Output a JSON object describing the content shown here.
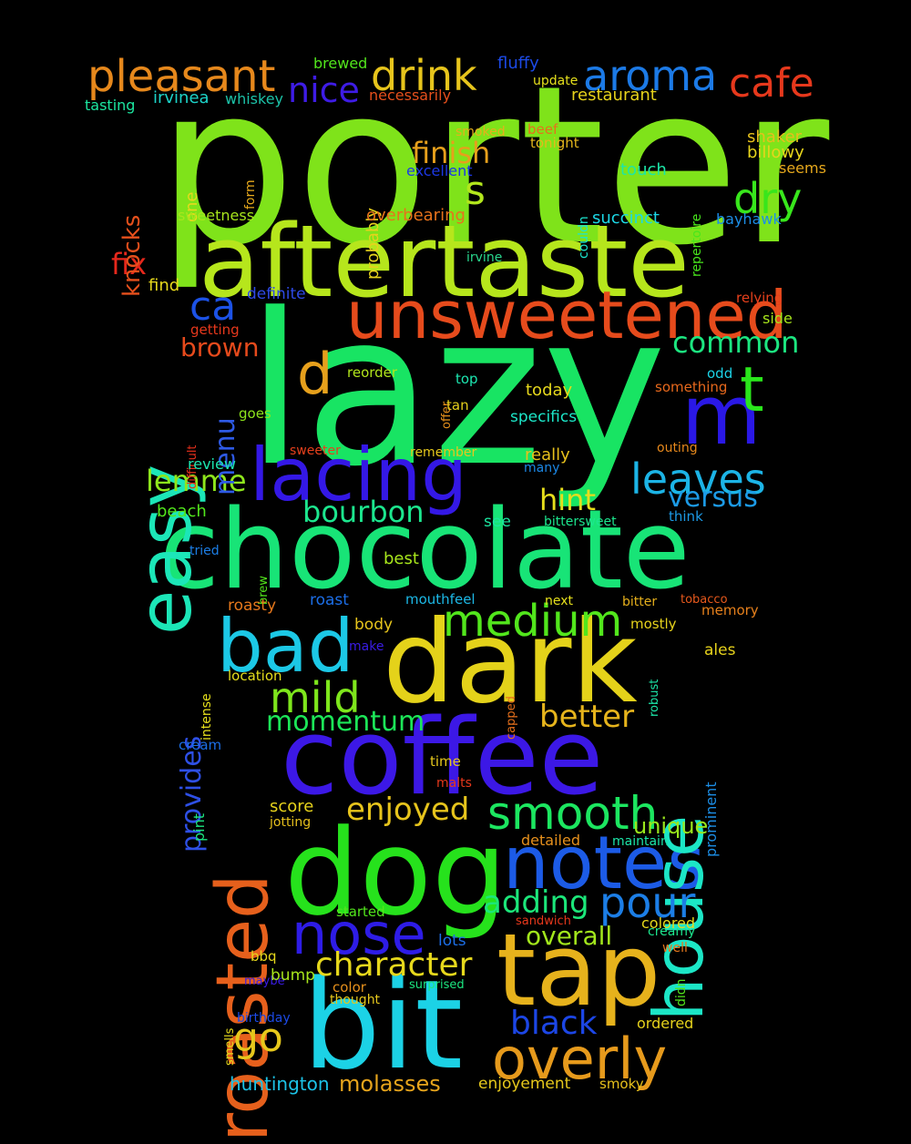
{
  "background": "#000000",
  "words": [
    {
      "text": "porter",
      "color": "#7fe31a"
    },
    {
      "text": "lazy",
      "color": "#18e463"
    },
    {
      "text": "aftertaste",
      "color": "#b6e61c"
    },
    {
      "text": "chocolate",
      "color": "#18e477"
    },
    {
      "text": "dark",
      "color": "#e4d21a"
    },
    {
      "text": "coffee",
      "color": "#3c18e6"
    },
    {
      "text": "dog",
      "color": "#26e21c"
    },
    {
      "text": "bit",
      "color": "#1cd2e6"
    },
    {
      "text": "tap",
      "color": "#e6b21c"
    },
    {
      "text": "unsweetened",
      "color": "#e64b1c"
    },
    {
      "text": "lacing",
      "color": "#3418e6"
    },
    {
      "text": "notes",
      "color": "#1c5be6"
    },
    {
      "text": "m",
      "color": "#2a18e6"
    },
    {
      "text": "roasted",
      "color": "#e6601c"
    },
    {
      "text": "house",
      "color": "#1ce6c6"
    },
    {
      "text": "easy",
      "color": "#1ce6b8"
    },
    {
      "text": "bad",
      "color": "#1cc8e6"
    },
    {
      "text": "overly",
      "color": "#e69a1c"
    },
    {
      "text": "nose",
      "color": "#2e1ce6"
    },
    {
      "text": "smooth",
      "color": "#1ce660"
    },
    {
      "text": "medium",
      "color": "#52e61c"
    },
    {
      "text": "pleasant",
      "color": "#e6881c"
    },
    {
      "text": "aroma",
      "color": "#1c7ae6"
    },
    {
      "text": "drink",
      "color": "#e6c41c"
    },
    {
      "text": "cafe",
      "color": "#e6381c"
    },
    {
      "text": "d",
      "color": "#e6a01c"
    },
    {
      "text": "t",
      "color": "#2ae61c"
    },
    {
      "text": "dry",
      "color": "#38e61c"
    },
    {
      "text": "leaves",
      "color": "#1cb4e6"
    },
    {
      "text": "pour",
      "color": "#1c7ee6"
    },
    {
      "text": "mild",
      "color": "#7ee61c"
    },
    {
      "text": "ca",
      "color": "#1c52e6"
    },
    {
      "text": "nice",
      "color": "#3e1ce6"
    },
    {
      "text": "s",
      "color": "#b2e61c"
    },
    {
      "text": "finish",
      "color": "#e6a01c"
    },
    {
      "text": "go",
      "color": "#e6c81c"
    },
    {
      "text": "character",
      "color": "#e6d81c"
    },
    {
      "text": "enjoyed",
      "color": "#e6c41c"
    },
    {
      "text": "adding",
      "color": "#1ce67a"
    },
    {
      "text": "black",
      "color": "#1c46e6"
    },
    {
      "text": "better",
      "color": "#e6b41c"
    },
    {
      "text": "common",
      "color": "#1ce680"
    },
    {
      "text": "bourbon",
      "color": "#1ce68e"
    },
    {
      "text": "hint",
      "color": "#e6de1c"
    },
    {
      "text": "lemme",
      "color": "#8ee61c"
    },
    {
      "text": "momentum",
      "color": "#1ce658"
    },
    {
      "text": "versus",
      "color": "#1c9ae6"
    },
    {
      "text": "menu",
      "color": "#2e5ae6"
    },
    {
      "text": "brown",
      "color": "#e64a1c"
    },
    {
      "text": "fix",
      "color": "#e6281c"
    },
    {
      "text": "provides",
      "color": "#2e50e6"
    },
    {
      "text": "knocks",
      "color": "#e6501c"
    },
    {
      "text": "overall",
      "color": "#a2e61c"
    },
    {
      "text": "molasses",
      "color": "#e6a41c"
    },
    {
      "text": "unique",
      "color": "#9ae61c"
    },
    {
      "text": "huntington",
      "color": "#1cc2e6"
    },
    {
      "text": "enjoyement",
      "color": "#e6c81c"
    },
    {
      "text": "restaurant",
      "color": "#e6d21c"
    },
    {
      "text": "fluffy",
      "color": "#1c4ae6"
    },
    {
      "text": "brewed",
      "color": "#52e61c"
    },
    {
      "text": "irvinea",
      "color": "#1cd2c8"
    },
    {
      "text": "whiskey",
      "color": "#1cc2a8"
    },
    {
      "text": "tasting",
      "color": "#1ce6a0"
    },
    {
      "text": "necessarily",
      "color": "#e6501c"
    },
    {
      "text": "update",
      "color": "#e6e01c"
    },
    {
      "text": "smoked",
      "color": "#e6b01c"
    },
    {
      "text": "beef",
      "color": "#e6701c"
    },
    {
      "text": "tonight",
      "color": "#e6b81c"
    },
    {
      "text": "excellent",
      "color": "#1c38e6"
    },
    {
      "text": "shaker",
      "color": "#e6c01c"
    },
    {
      "text": "billowy",
      "color": "#e6d41c"
    },
    {
      "text": "seems",
      "color": "#e6a81c"
    },
    {
      "text": "touch",
      "color": "#1ce6a8"
    },
    {
      "text": "succinct",
      "color": "#1cd8e6"
    },
    {
      "text": "bayhawk",
      "color": "#1c8ee6"
    },
    {
      "text": "repertoire",
      "color": "#48e61c"
    },
    {
      "text": "couldn",
      "color": "#1ce6d0"
    },
    {
      "text": "probably",
      "color": "#e6d21c"
    },
    {
      "text": "overbearing",
      "color": "#e6721c"
    },
    {
      "text": "one",
      "color": "#e6da1c"
    },
    {
      "text": "form",
      "color": "#e6a81c"
    },
    {
      "text": "sweetness",
      "color": "#a8e61c"
    },
    {
      "text": "irvine",
      "color": "#2ad88e"
    },
    {
      "text": "find",
      "color": "#e6d81c"
    },
    {
      "text": "definite",
      "color": "#2e4ae6"
    },
    {
      "text": "relying",
      "color": "#e6401c"
    },
    {
      "text": "side",
      "color": "#a8e61c"
    },
    {
      "text": "getting",
      "color": "#e6381c"
    },
    {
      "text": "reorder",
      "color": "#b2e61c"
    },
    {
      "text": "top",
      "color": "#1ce6b0"
    },
    {
      "text": "offer",
      "color": "#e6901c"
    },
    {
      "text": "tan",
      "color": "#e6d01c"
    },
    {
      "text": "today",
      "color": "#e6d81c"
    },
    {
      "text": "odd",
      "color": "#1cd2e6"
    },
    {
      "text": "something",
      "color": "#e6681c"
    },
    {
      "text": "difficult",
      "color": "#e6301c"
    },
    {
      "text": "goes",
      "color": "#8ee61c"
    },
    {
      "text": "specifics",
      "color": "#1ce6c8"
    },
    {
      "text": "review",
      "color": "#1ce6b0"
    },
    {
      "text": "sweeter",
      "color": "#e6401c"
    },
    {
      "text": "remember",
      "color": "#e6c81c"
    },
    {
      "text": "outing",
      "color": "#e6881c"
    },
    {
      "text": "really",
      "color": "#e6c01c"
    },
    {
      "text": "many",
      "color": "#1c88e6"
    },
    {
      "text": "beach",
      "color": "#52e61c"
    },
    {
      "text": "see",
      "color": "#1ce6a0"
    },
    {
      "text": "bittersweet",
      "color": "#1ce68e"
    },
    {
      "text": "think",
      "color": "#1c9ae6"
    },
    {
      "text": "tried",
      "color": "#1c7ee6"
    },
    {
      "text": "brew",
      "color": "#52e61c"
    },
    {
      "text": "best",
      "color": "#a8e61c"
    },
    {
      "text": "roasty",
      "color": "#e6781c"
    },
    {
      "text": "roast",
      "color": "#1c6ee6"
    },
    {
      "text": "mouthfeel",
      "color": "#1cb8e6"
    },
    {
      "text": "next",
      "color": "#e6e01c"
    },
    {
      "text": "bitter",
      "color": "#e6b01c"
    },
    {
      "text": "tobacco",
      "color": "#e6581c"
    },
    {
      "text": "mostly",
      "color": "#e6d21c"
    },
    {
      "text": "memory",
      "color": "#e6801c"
    },
    {
      "text": "intense",
      "color": "#e6e01c"
    },
    {
      "text": "body",
      "color": "#e6c41c"
    },
    {
      "text": "make",
      "color": "#3a1ce6"
    },
    {
      "text": "robust",
      "color": "#1ce6a8"
    },
    {
      "text": "ales",
      "color": "#e6d21c"
    },
    {
      "text": "location",
      "color": "#e6de1c"
    },
    {
      "text": "capped",
      "color": "#e6701c"
    },
    {
      "text": "prominent",
      "color": "#1c8ee6"
    },
    {
      "text": "cream",
      "color": "#1c6ee6"
    },
    {
      "text": "time",
      "color": "#e6c81c"
    },
    {
      "text": "malts",
      "color": "#e6381c"
    },
    {
      "text": "pint",
      "color": "#1ce680"
    },
    {
      "text": "score",
      "color": "#e6d21c"
    },
    {
      "text": "jotting",
      "color": "#e6c01c"
    },
    {
      "text": "detailed",
      "color": "#e6901c"
    },
    {
      "text": "maintain",
      "color": "#1ce6a8"
    },
    {
      "text": "started",
      "color": "#52e61c"
    },
    {
      "text": "sandwich",
      "color": "#e6381c"
    },
    {
      "text": "lots",
      "color": "#1c6ee6"
    },
    {
      "text": "colored",
      "color": "#e6d81c"
    },
    {
      "text": "creamy",
      "color": "#1ce68e"
    },
    {
      "text": "well",
      "color": "#e6781c"
    },
    {
      "text": "didn",
      "color": "#52e61c"
    },
    {
      "text": "bbq",
      "color": "#e6d81c"
    },
    {
      "text": "maybe",
      "color": "#3a1ce6"
    },
    {
      "text": "smells",
      "color": "#e6da1c"
    },
    {
      "text": "color",
      "color": "#e6901c"
    },
    {
      "text": "surprised",
      "color": "#1ce680"
    },
    {
      "text": "bump",
      "color": "#a8e61c"
    },
    {
      "text": "thought",
      "color": "#e6c81c"
    },
    {
      "text": "birthday",
      "color": "#1c4ae6"
    },
    {
      "text": "ordered",
      "color": "#e6d21c"
    },
    {
      "text": "smoky",
      "color": "#e6c01c"
    }
  ]
}
